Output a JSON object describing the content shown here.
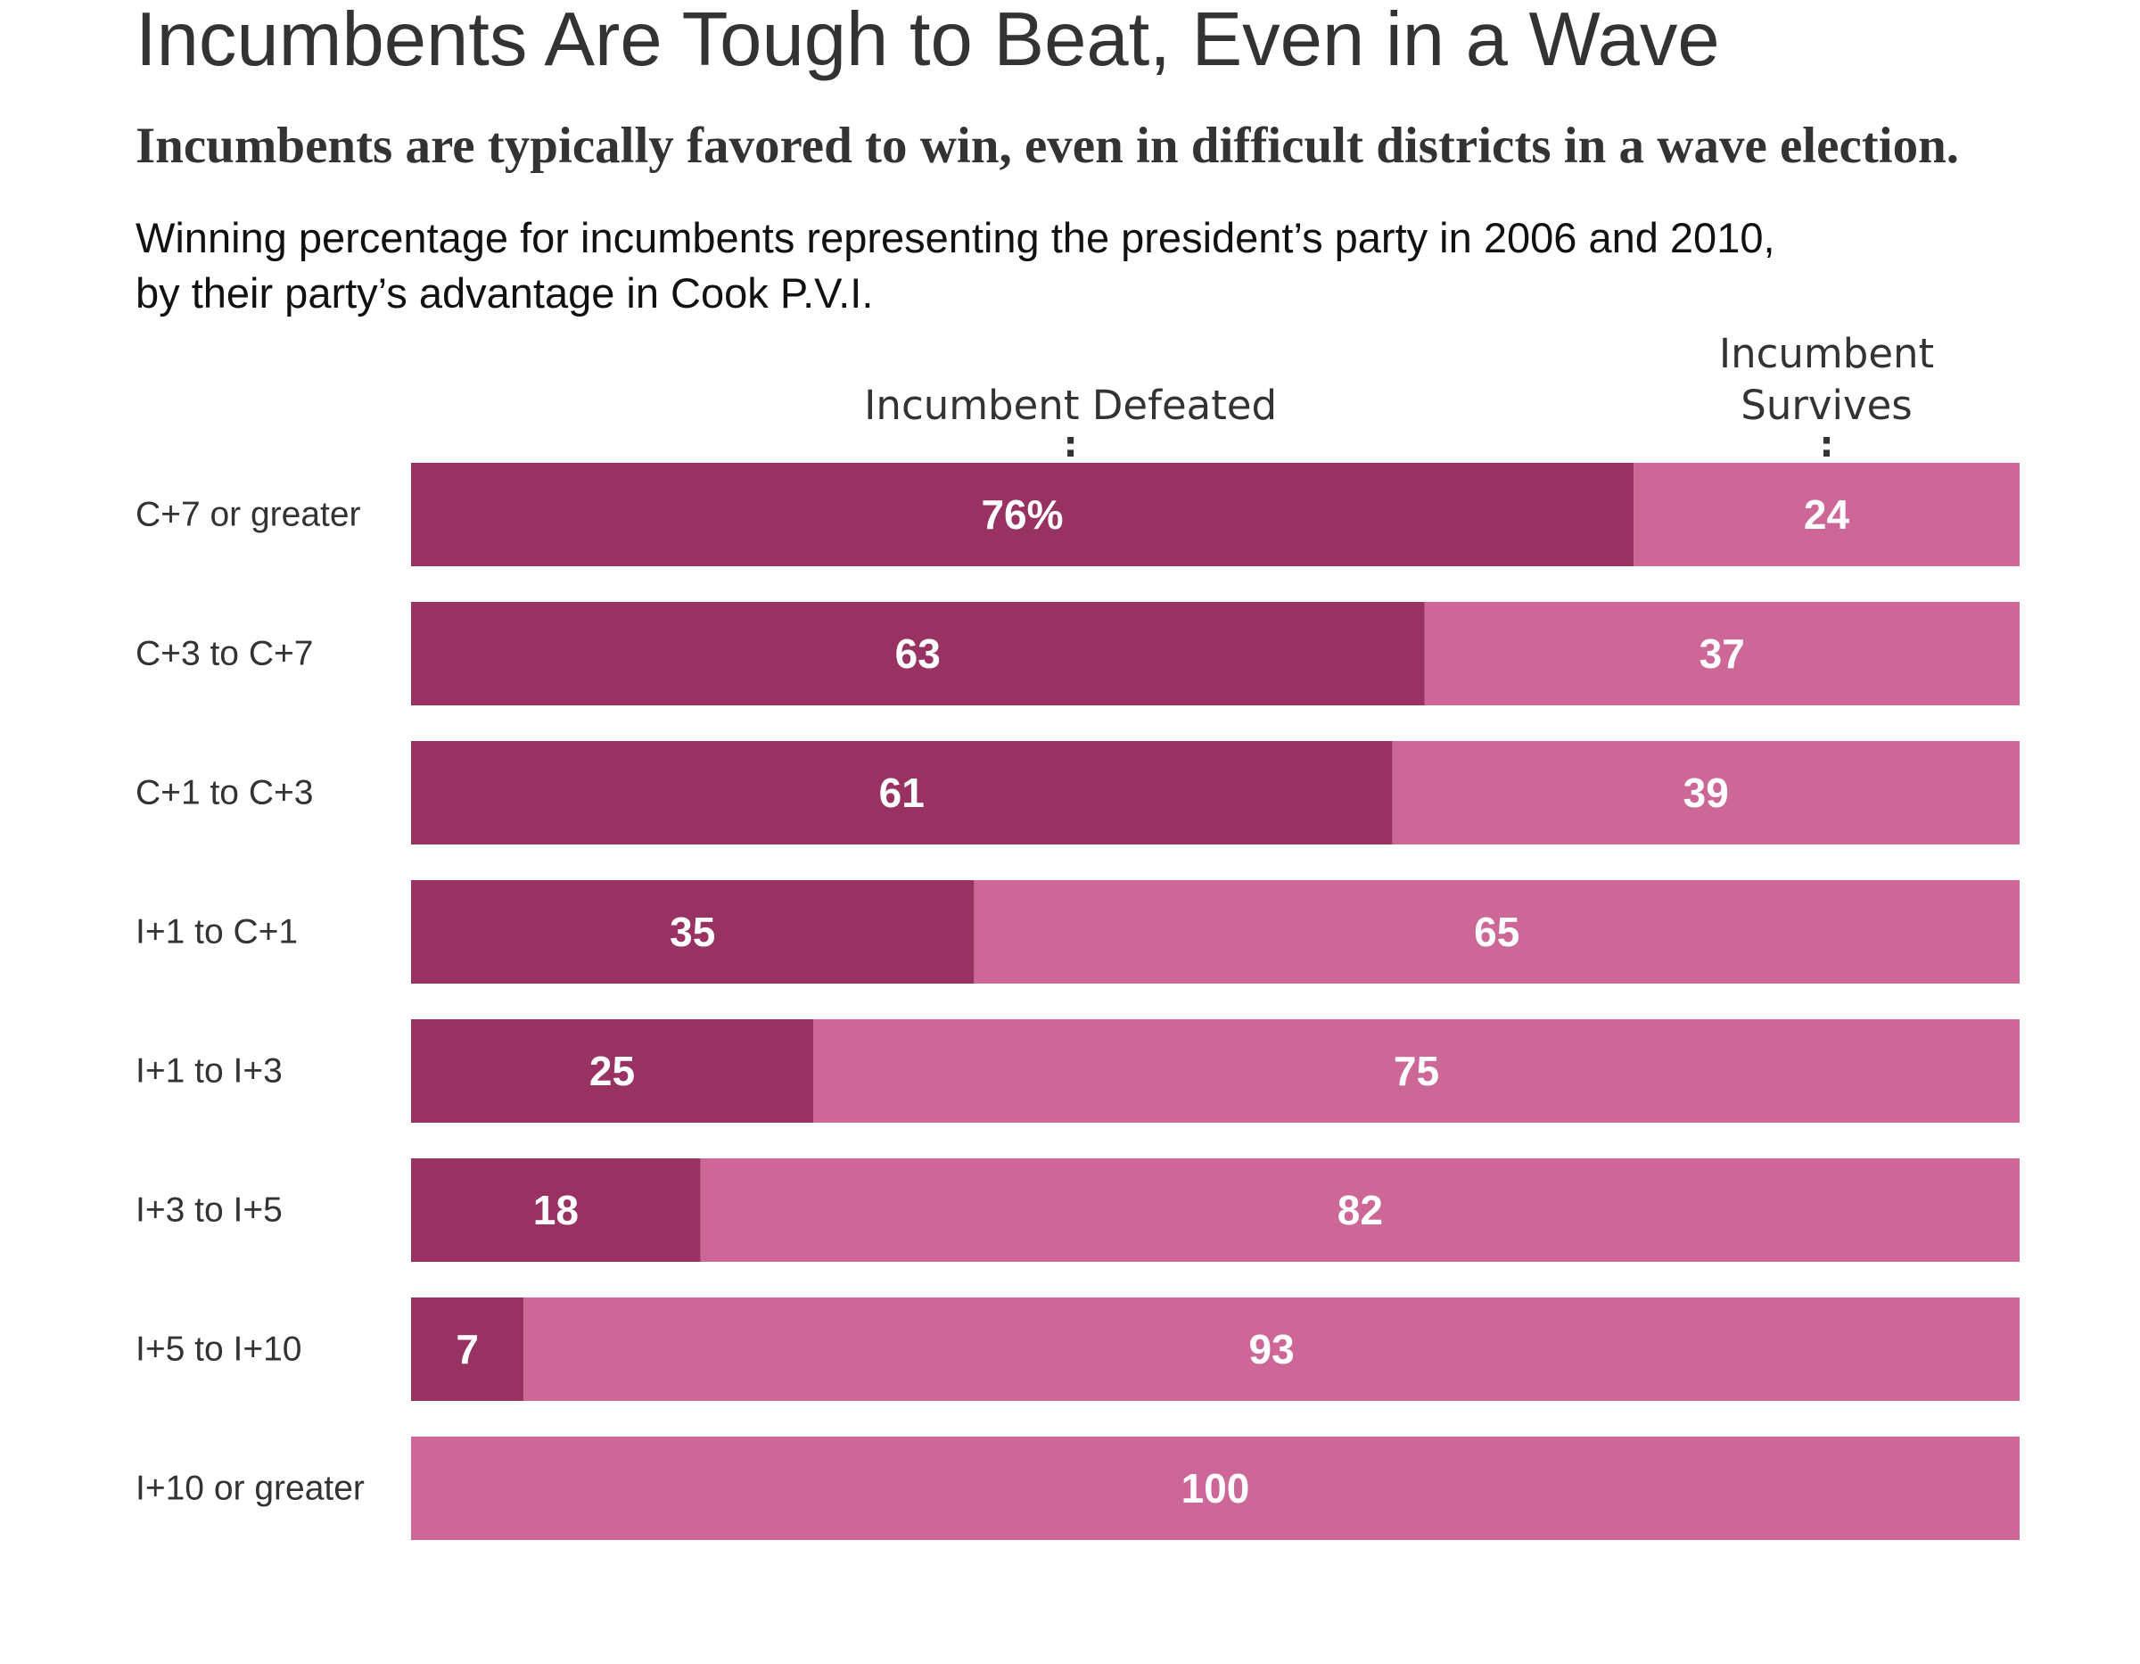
{
  "header": {
    "title": "Incumbents Are Tough to Beat, Even in a Wave",
    "subtitle": "Incumbents are typically favored to win, even in difficult districts in a wave election.",
    "description_lines": [
      "Winning percentage for incumbents representing the president’s party in 2006 and 2010,",
      "by their party’s advantage in Cook P.V.I."
    ]
  },
  "chart_data": {
    "type": "bar",
    "orientation": "horizontal",
    "stacked": true,
    "xlim": [
      0,
      100
    ],
    "grid": false,
    "column_headers": [
      {
        "text_lines": [
          "Incumbent Defeated"
        ],
        "marker": ":"
      },
      {
        "text_lines": [
          "Incumbent",
          "Survives"
        ],
        "marker": ":"
      }
    ],
    "categories": [
      "C+7 or greater",
      "C+3 to C+7",
      "C+1 to C+3",
      "I+1 to C+1",
      "I+1 to I+3",
      "I+3 to I+5",
      "I+5 to I+10",
      "I+10 or greater"
    ],
    "series": [
      {
        "name": "Incumbent Defeated",
        "color": "#983263",
        "values": [
          76,
          63,
          61,
          35,
          25,
          18,
          7,
          0
        ],
        "labels": [
          "76%",
          "63",
          "61",
          "35",
          "25",
          "18",
          "7",
          ""
        ]
      },
      {
        "name": "Incumbent Survives",
        "color": "#cc6797",
        "values": [
          24,
          37,
          39,
          65,
          75,
          82,
          93,
          100
        ],
        "labels": [
          "24",
          "37",
          "39",
          "65",
          "75",
          "82",
          "93",
          "100"
        ]
      }
    ]
  }
}
